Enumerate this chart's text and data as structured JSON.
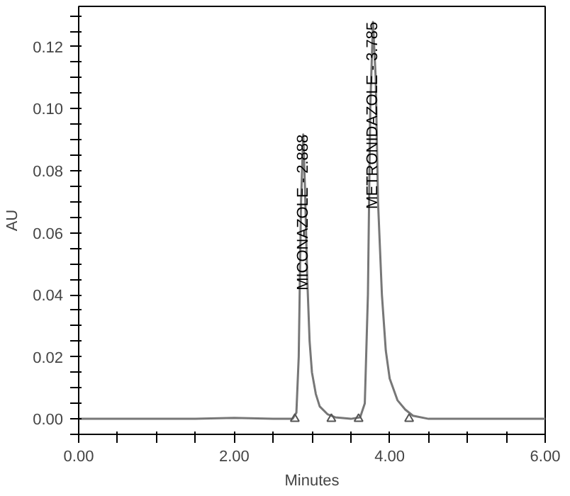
{
  "chart_data": {
    "type": "line",
    "xlabel": "Minutes",
    "ylabel": "AU",
    "xlim": [
      0,
      6
    ],
    "ylim": [
      -0.005,
      0.133
    ],
    "xticks": [
      {
        "value": 0,
        "label": "0.00"
      },
      {
        "value": 0.5,
        "label": null
      },
      {
        "value": 1,
        "label": null
      },
      {
        "value": 1.5,
        "label": null
      },
      {
        "value": 2,
        "label": "2.00"
      },
      {
        "value": 2.5,
        "label": null
      },
      {
        "value": 3,
        "label": null
      },
      {
        "value": 3.5,
        "label": null
      },
      {
        "value": 4,
        "label": "4.00"
      },
      {
        "value": 4.5,
        "label": null
      },
      {
        "value": 5,
        "label": null
      },
      {
        "value": 5.5,
        "label": null
      },
      {
        "value": 6,
        "label": "6.00"
      }
    ],
    "yticks": [
      {
        "value": -0.005,
        "label": null
      },
      {
        "value": 0,
        "label": "0.00"
      },
      {
        "value": 0.005,
        "label": null
      },
      {
        "value": 0.01,
        "label": null
      },
      {
        "value": 0.015,
        "label": null
      },
      {
        "value": 0.02,
        "label": "0.02"
      },
      {
        "value": 0.025,
        "label": null
      },
      {
        "value": 0.03,
        "label": null
      },
      {
        "value": 0.035,
        "label": null
      },
      {
        "value": 0.04,
        "label": "0.04"
      },
      {
        "value": 0.045,
        "label": null
      },
      {
        "value": 0.05,
        "label": null
      },
      {
        "value": 0.055,
        "label": null
      },
      {
        "value": 0.06,
        "label": "0.06"
      },
      {
        "value": 0.065,
        "label": null
      },
      {
        "value": 0.07,
        "label": null
      },
      {
        "value": 0.075,
        "label": null
      },
      {
        "value": 0.08,
        "label": "0.08"
      },
      {
        "value": 0.085,
        "label": null
      },
      {
        "value": 0.09,
        "label": null
      },
      {
        "value": 0.095,
        "label": null
      },
      {
        "value": 0.1,
        "label": "0.10"
      },
      {
        "value": 0.105,
        "label": null
      },
      {
        "value": 0.11,
        "label": null
      },
      {
        "value": 0.115,
        "label": null
      },
      {
        "value": 0.12,
        "label": "0.12"
      },
      {
        "value": 0.125,
        "label": null
      },
      {
        "value": 0.13,
        "label": null
      }
    ],
    "grid": false,
    "marker": "none",
    "line_style": "solid",
    "series": [
      {
        "color": "#777777",
        "x": [
          0,
          1.5,
          2.0,
          2.5,
          2.75,
          2.8,
          2.83,
          2.86,
          2.888,
          2.91,
          2.94,
          2.97,
          3.0,
          3.05,
          3.1,
          3.2,
          3.3,
          3.5,
          3.62,
          3.68,
          3.72,
          3.75,
          3.785,
          3.82,
          3.85,
          3.9,
          3.95,
          4.0,
          4.1,
          4.2,
          4.3,
          4.5,
          6
        ],
        "values": [
          0,
          0,
          0.0003,
          0,
          0,
          0.002,
          0.02,
          0.07,
          0.0917,
          0.075,
          0.045,
          0.025,
          0.015,
          0.008,
          0.004,
          0.0015,
          0.0005,
          0,
          0.0005,
          0.005,
          0.04,
          0.1,
          0.128,
          0.11,
          0.07,
          0.04,
          0.022,
          0.013,
          0.006,
          0.003,
          0.001,
          0,
          0
        ]
      },
      {
        "type": "scatter",
        "marker": "triangle",
        "color": "#555555",
        "x": [
          2.78,
          3.25,
          3.6,
          4.25
        ],
        "values": [
          0,
          0,
          0,
          0
        ]
      }
    ],
    "annotations": [
      {
        "text": "MICONAZOLE - 2.888",
        "x": 2.888,
        "y": 0.0917
      },
      {
        "text": "METRONIDAZOLE - 3.785",
        "x": 3.785,
        "y": 0.128
      }
    ]
  }
}
